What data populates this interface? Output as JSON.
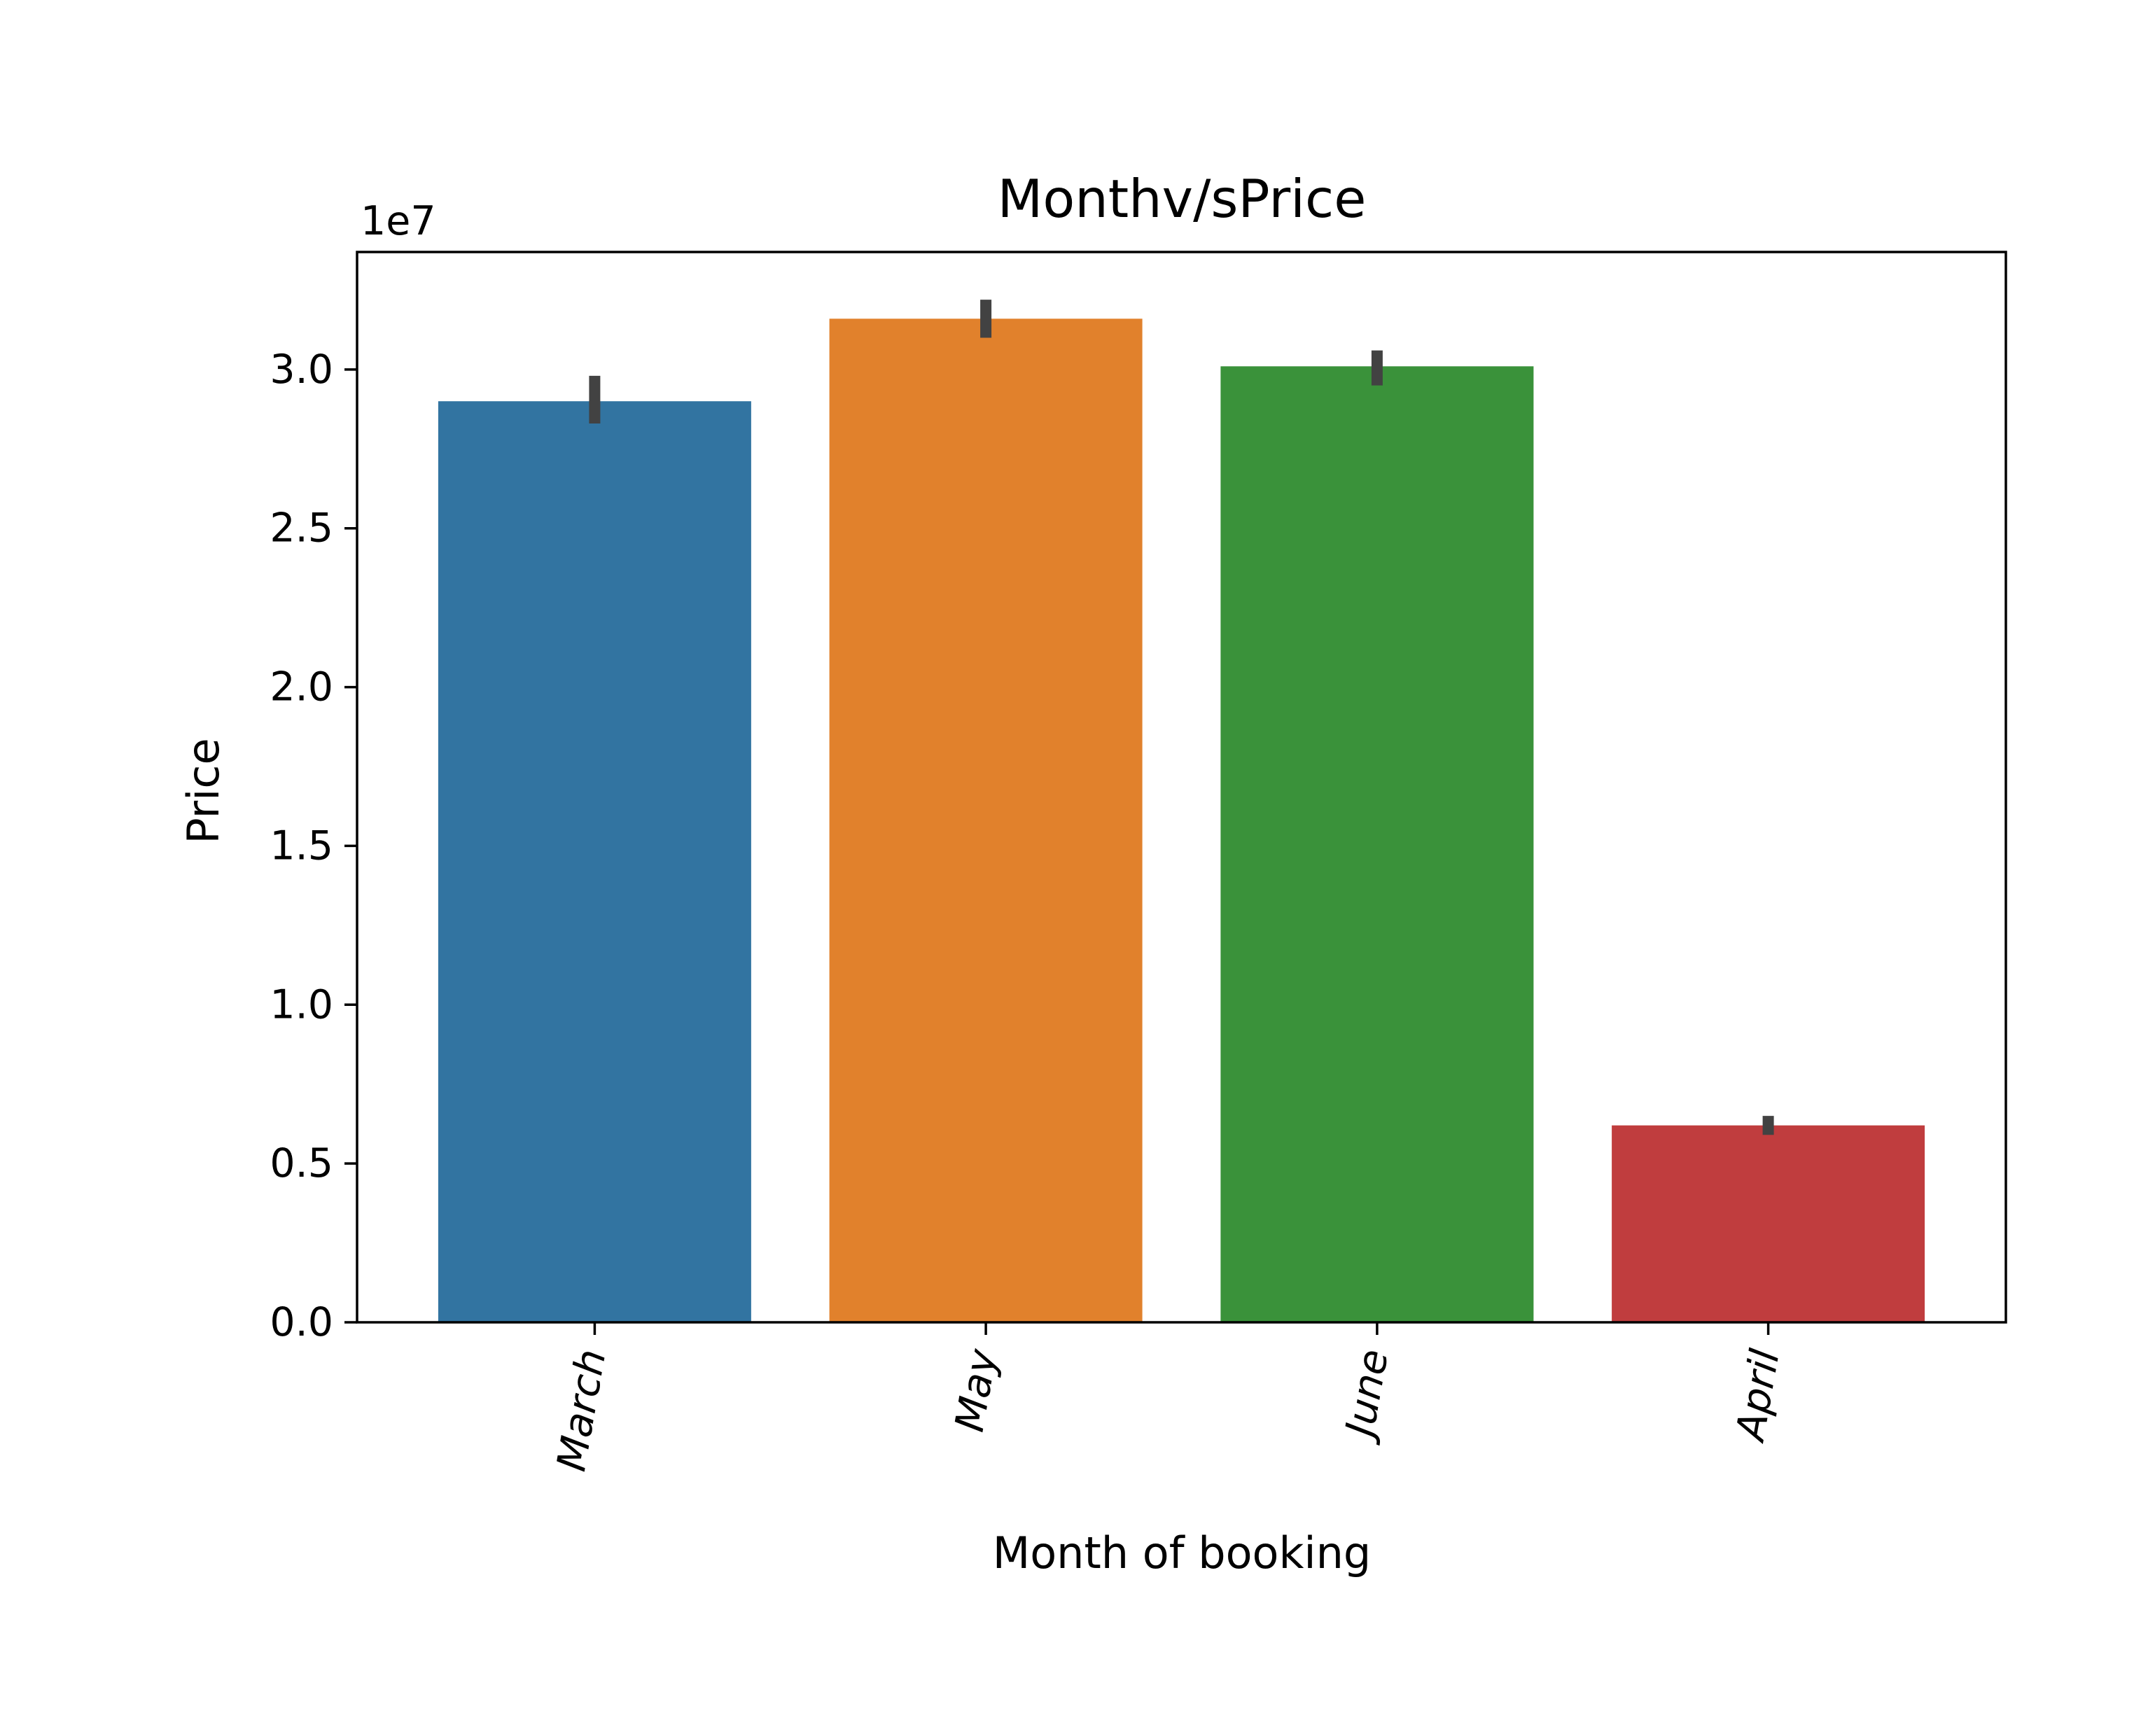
{
  "chart_data": {
    "type": "bar",
    "title": "Monthv/sPrice",
    "xlabel": "Month of booking",
    "ylabel": "Price",
    "y_scale_label": "1e7",
    "y_multiplier": 10000000,
    "categories": [
      "March",
      "May",
      "June",
      "April"
    ],
    "values": [
      29000000,
      31600000,
      30100000,
      6200000
    ],
    "error_bars": [
      {
        "low": 28300000,
        "high": 29800000
      },
      {
        "low": 31000000,
        "high": 32200000
      },
      {
        "low": 29500000,
        "high": 30600000
      },
      {
        "low": 5900000,
        "high": 6500000
      }
    ],
    "colors": [
      "#3274a1",
      "#e1812c",
      "#3a923a",
      "#c03d3e"
    ],
    "error_bar_color": "#424242",
    "ylim": [
      0,
      33700000
    ],
    "yticks": [
      0,
      5000000,
      10000000,
      15000000,
      20000000,
      25000000,
      30000000
    ],
    "ytick_labels": [
      "0.0",
      "0.5",
      "1.0",
      "1.5",
      "2.0",
      "2.5",
      "3.0"
    ],
    "xtick_rotation_deg": -80,
    "grid": false,
    "legend": "none"
  }
}
